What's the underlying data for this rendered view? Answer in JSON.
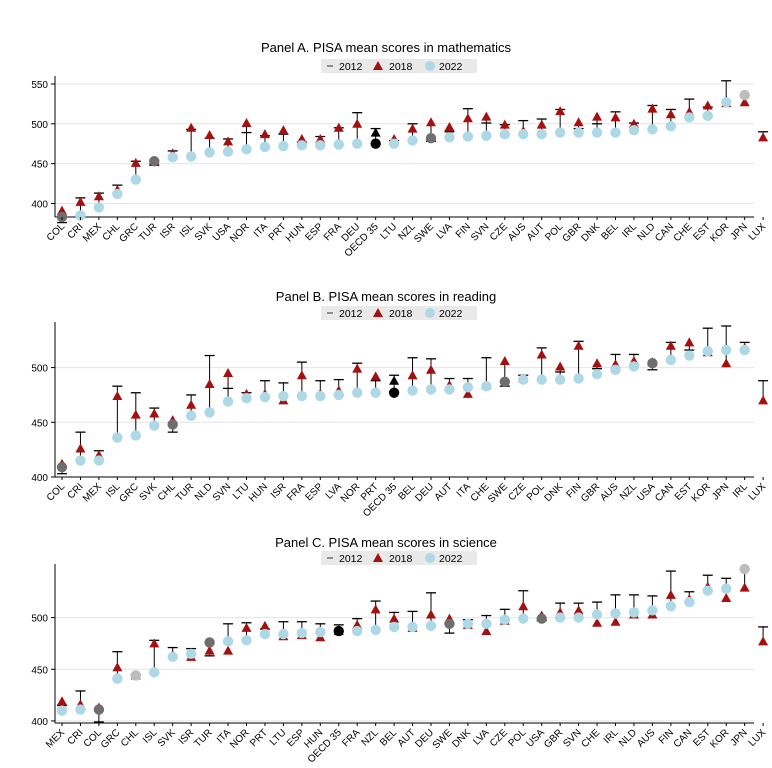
{
  "legend": {
    "l2012": "2012",
    "l2018": "2018",
    "l2022": "2022"
  },
  "colors": {
    "c2012": "#6e6e6e",
    "c2018": "#a50f0f",
    "c2022": "#add8e6",
    "oecd": "#000000",
    "grid": "#e4e4e4"
  },
  "chart_data": [
    {
      "type": "scatter",
      "title": "Panel A. PISA mean scores in mathematics",
      "ylim": [
        383,
        555
      ],
      "yticks": [
        400,
        450,
        500,
        550
      ],
      "categories": [
        "COL",
        "CRI",
        "MEX",
        "CHL",
        "GRC",
        "TUR",
        "ISR",
        "ISL",
        "SVK",
        "USA",
        "NOR",
        "ITA",
        "PRT",
        "HUN",
        "ESP",
        "FRA",
        "DEU",
        "OECD 35",
        "LTU",
        "NZL",
        "SWE",
        "LVA",
        "FIN",
        "SVN",
        "CZE",
        "AUS",
        "AUT",
        "POL",
        "GBR",
        "DNK",
        "BEL",
        "IRL",
        "NLD",
        "CAN",
        "CHE",
        "EST",
        "KOR",
        "JPN",
        "LUX"
      ],
      "series": [
        {
          "name": "2012",
          "values": [
            376,
            407,
            413,
            423,
            453,
            448,
            466,
            493,
            482,
            481,
            489,
            485,
            487,
            477,
            484,
            495,
            514,
            494,
            479,
            500,
            478,
            490,
            519,
            501,
            499,
            504,
            506,
            518,
            494,
            500,
            515,
            501,
            523,
            518,
            531,
            521,
            554,
            536,
            490
          ]
        },
        {
          "name": "2018",
          "values": [
            391,
            402,
            409,
            417,
            451,
            454,
            463,
            495,
            486,
            478,
            501,
            487,
            492,
            481,
            481,
            495,
            500,
            489,
            481,
            494,
            502,
            496,
            507,
            509,
            499,
            491,
            499,
            516,
            502,
            509,
            508,
            500,
            519,
            512,
            515,
            523,
            526,
            527,
            483
          ]
        },
        {
          "name": "2022",
          "values": [
            383,
            385,
            395,
            412,
            430,
            453,
            458,
            459,
            464,
            465,
            468,
            471,
            472,
            473,
            473,
            474,
            475,
            475,
            475,
            479,
            482,
            483,
            484,
            485,
            487,
            487,
            487,
            489,
            489,
            489,
            489,
            492,
            493,
            497,
            508,
            510,
            527,
            536,
            null
          ]
        }
      ]
    },
    {
      "type": "scatter",
      "title": "Panel B. PISA mean scores in reading",
      "ylim": [
        400,
        538
      ],
      "yticks": [
        400,
        450,
        500
      ],
      "categories": [
        "COL",
        "CRI",
        "MEX",
        "ISL",
        "GRC",
        "SVK",
        "CHL",
        "TUR",
        "NLD",
        "SVN",
        "LTU",
        "HUN",
        "ISR",
        "FRA",
        "ESP",
        "LVA",
        "NOR",
        "PRT",
        "OECD 35",
        "BEL",
        "DEU",
        "AUT",
        "ITA",
        "CHE",
        "SWE",
        "CZE",
        "POL",
        "DNK",
        "FIN",
        "GBR",
        "AUS",
        "NZL",
        "USA",
        "CAN",
        "EST",
        "KOR",
        "JPN",
        "IRL",
        "LUX"
      ],
      "series": [
        {
          "name": "2012",
          "values": [
            403,
            441,
            424,
            483,
            477,
            463,
            441,
            475,
            511,
            481,
            477,
            488,
            486,
            505,
            488,
            489,
            504,
            488,
            493,
            509,
            508,
            490,
            490,
            509,
            483,
            493,
            518,
            496,
            524,
            499,
            512,
            512,
            498,
            523,
            516,
            536,
            538,
            523,
            488
          ]
        },
        {
          "name": "2018",
          "values": [
            412,
            426,
            420,
            474,
            457,
            458,
            452,
            466,
            485,
            495,
            476,
            476,
            470,
            493,
            476,
            479,
            499,
            492,
            488,
            493,
            498,
            484,
            476,
            484,
            506,
            490,
            512,
            501,
            520,
            504,
            503,
            506,
            505,
            520,
            523,
            514,
            504,
            518,
            470
          ]
        },
        {
          "name": "2022",
          "values": [
            409,
            415,
            415,
            436,
            438,
            447,
            448,
            456,
            459,
            469,
            472,
            473,
            474,
            474,
            474,
            475,
            477,
            477,
            477,
            479,
            480,
            480,
            482,
            483,
            487,
            489,
            489,
            489,
            490,
            494,
            498,
            501,
            504,
            507,
            511,
            515,
            516,
            516,
            null
          ]
        }
      ]
    },
    {
      "type": "scatter",
      "title": "Panel C. PISA mean scores in science",
      "ylim": [
        398,
        548
      ],
      "yticks": [
        400,
        450,
        500,
        550
      ],
      "categories": [
        "MEX",
        "CRI",
        "COL",
        "GRC",
        "CHL",
        "ISL",
        "SVK",
        "ISR",
        "TUR",
        "ITA",
        "NOR",
        "PRT",
        "LTU",
        "ESP",
        "HUN",
        "OECD 35",
        "FRA",
        "NZL",
        "BEL",
        "AUT",
        "DEU",
        "SWE",
        "DNK",
        "LVA",
        "CZE",
        "POL",
        "USA",
        "GBR",
        "SVN",
        "CHE",
        "IRL",
        "NLD",
        "AUS",
        "FIN",
        "CAN",
        "EST",
        "KOR",
        "JPN",
        "LUX"
      ],
      "series": [
        {
          "name": "2012",
          "values": [
            415,
            429,
            399,
            467,
            445,
            478,
            471,
            470,
            463,
            494,
            495,
            489,
            496,
            496,
            494,
            493,
            499,
            516,
            505,
            506,
            524,
            485,
            498,
            502,
            508,
            526,
            497,
            514,
            514,
            515,
            522,
            522,
            521,
            545,
            525,
            541,
            538,
            547,
            491
          ]
        },
        {
          "name": "2018",
          "values": [
            419,
            416,
            413,
            452,
            444,
            475,
            464,
            462,
            468,
            468,
            490,
            492,
            482,
            483,
            481,
            487,
            493,
            508,
            499,
            490,
            503,
            499,
            493,
            487,
            497,
            511,
            502,
            505,
            507,
            495,
            496,
            503,
            503,
            522,
            518,
            530,
            519,
            529,
            477
          ]
        },
        {
          "name": "2022",
          "values": [
            410,
            411,
            411,
            441,
            444,
            447,
            462,
            465,
            476,
            477,
            478,
            484,
            484,
            485,
            486,
            487,
            487,
            488,
            491,
            491,
            492,
            494,
            494,
            494,
            498,
            499,
            499,
            500,
            500,
            503,
            504,
            505,
            507,
            511,
            515,
            526,
            528,
            547,
            null
          ]
        }
      ]
    }
  ]
}
